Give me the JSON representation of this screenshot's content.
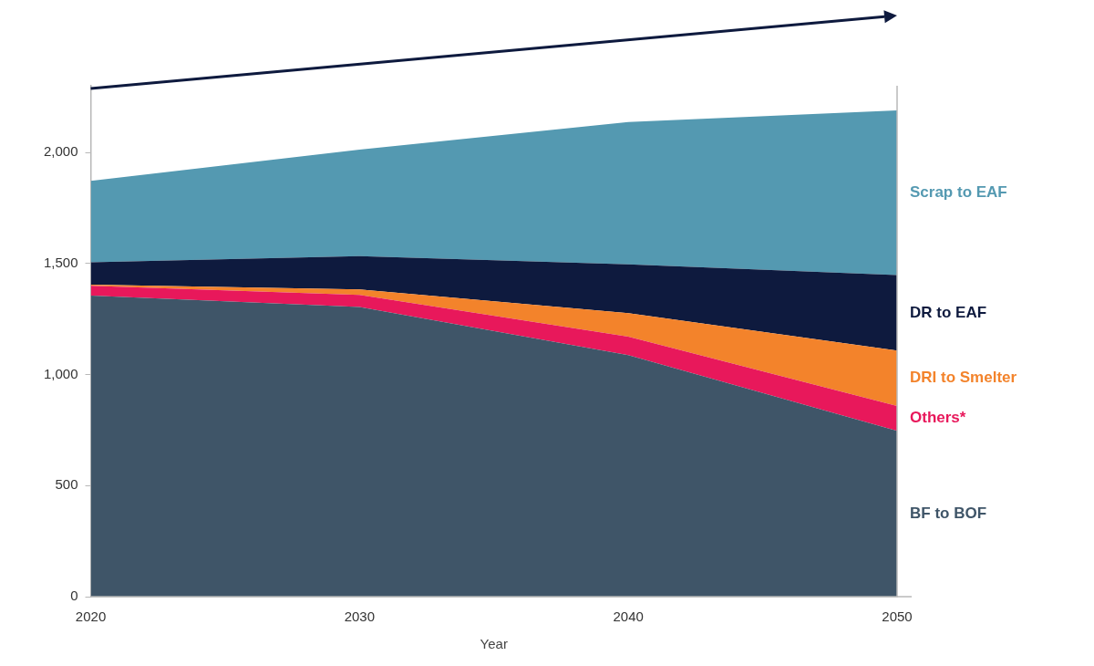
{
  "chart_data": {
    "type": "area",
    "stacked": true,
    "grid": false,
    "x_label": "Year",
    "categories": [
      "2020",
      "2030",
      "2040",
      "2050"
    ],
    "ylim": [
      0,
      2300
    ],
    "yticks": [
      0,
      {
        "value": 500,
        "label": "500"
      },
      {
        "value": 1000,
        "label": "1,000"
      },
      {
        "value": 1500,
        "label": "1,500"
      },
      {
        "value": 2000,
        "label": "2,000"
      }
    ],
    "series": [
      {
        "name": "BF to BOF",
        "color": "#3f5568",
        "values": [
          1355,
          1304,
          1087,
          746
        ]
      },
      {
        "name": "Others*",
        "color": "#e8185b",
        "values": [
          45,
          54,
          84,
          112
        ]
      },
      {
        "name": "DRI to Smelter",
        "color": "#f3832b",
        "values": [
          5,
          25,
          105,
          250
        ]
      },
      {
        "name": "DR to EAF",
        "color": "#0e1a3e",
        "values": [
          100,
          150,
          220,
          340
        ]
      },
      {
        "name": "Scrap to EAF",
        "color": "#5499b1",
        "values": [
          367,
          480,
          641,
          741
        ]
      }
    ]
  }
}
